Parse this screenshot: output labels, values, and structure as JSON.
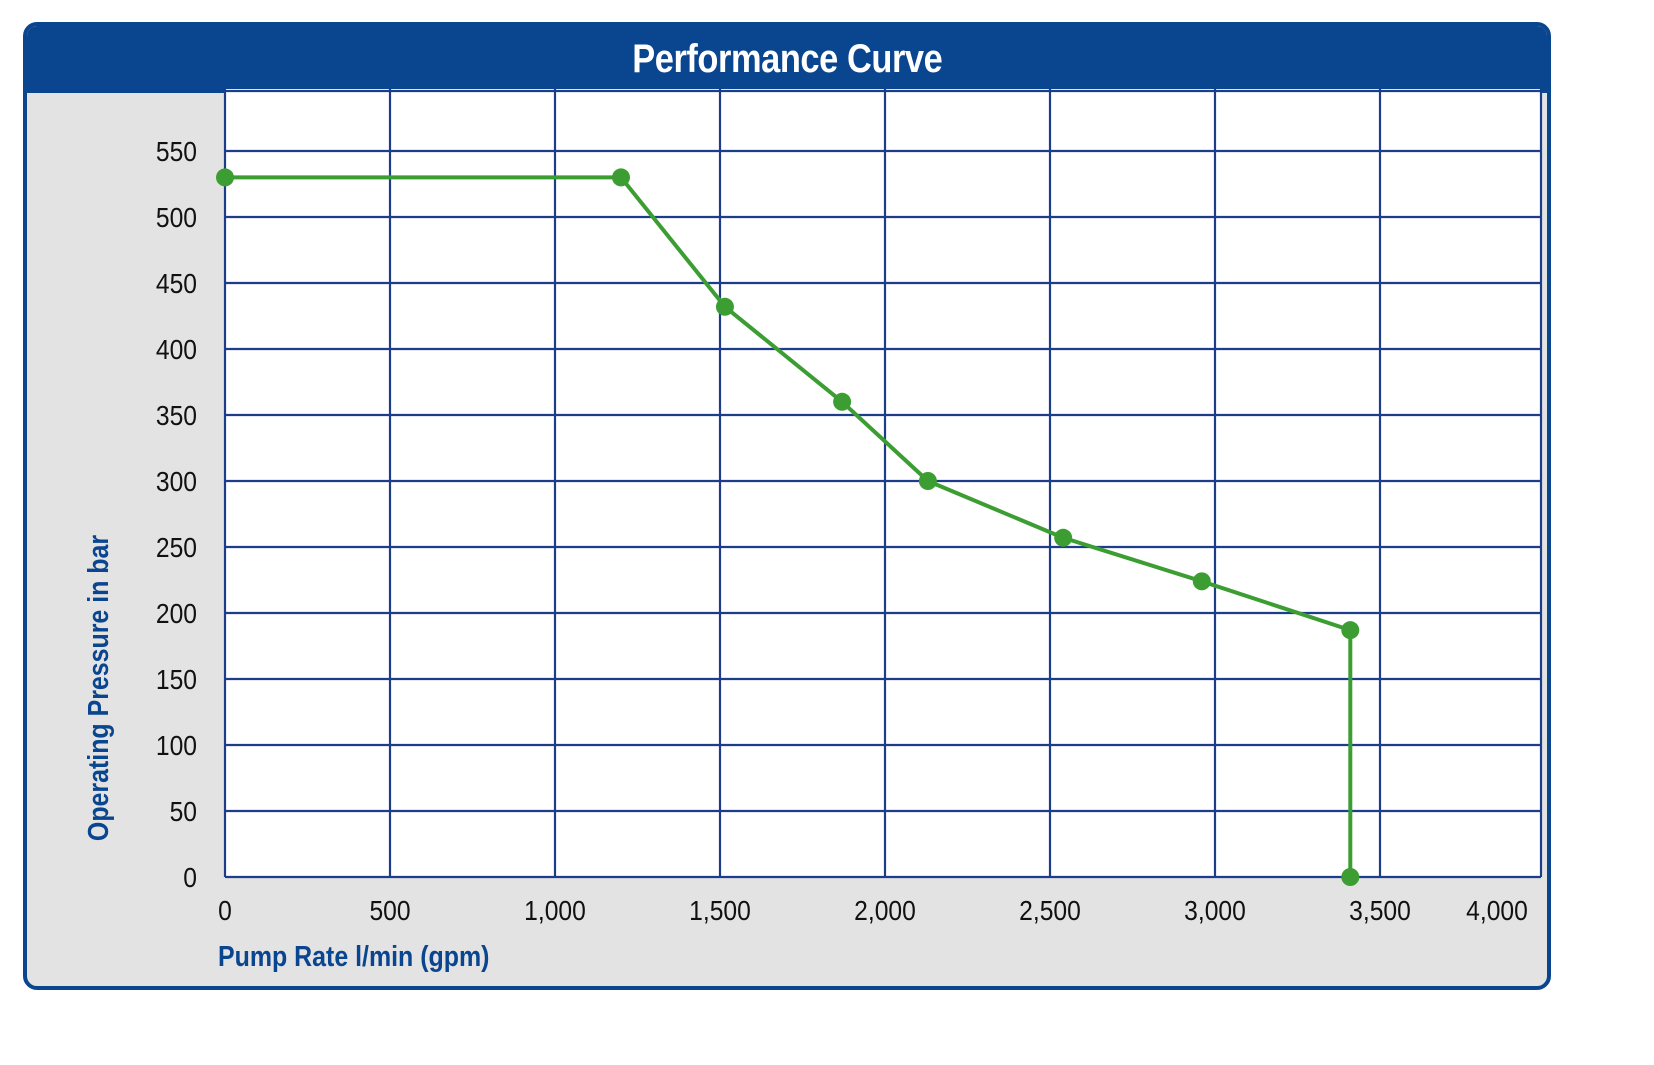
{
  "header": {
    "title": "Performance Curve"
  },
  "colors": {
    "frame": "#0a4590",
    "background": "#e3e3e3",
    "plot_area": "#ffffff",
    "grid": "#1d3d8a",
    "series": "#3c9e32",
    "axis_title": "#0a4590",
    "tick_text": "#111111"
  },
  "chart_data": {
    "type": "line",
    "title": "Performance Curve",
    "xlabel": "Pump Rate l/min (gpm)",
    "ylabel": "Operating Pressure in bar",
    "xlim": [
      0,
      4000
    ],
    "ylim": [
      0,
      600
    ],
    "x_ticks": [
      0,
      500,
      1000,
      1500,
      2000,
      2500,
      3000,
      3500,
      4000
    ],
    "x_tick_labels": [
      "0",
      "500",
      "1,000",
      "1,500",
      "2,000",
      "2,500",
      "3,000",
      "3,500",
      "4,000"
    ],
    "y_ticks": [
      0,
      50,
      100,
      150,
      200,
      250,
      300,
      350,
      400,
      450,
      500,
      550
    ],
    "y_tick_labels": [
      "0",
      "50",
      "100",
      "150",
      "200",
      "250",
      "300",
      "350",
      "400",
      "450",
      "500",
      "550"
    ],
    "grid": true,
    "legend": "none",
    "series": [
      {
        "x": [
          0,
          1200,
          1515,
          1870,
          2130,
          2540,
          2960,
          3410,
          3410
        ],
        "y": [
          530,
          530,
          432,
          360,
          300,
          257,
          224,
          187,
          0
        ],
        "markers": true
      }
    ]
  }
}
